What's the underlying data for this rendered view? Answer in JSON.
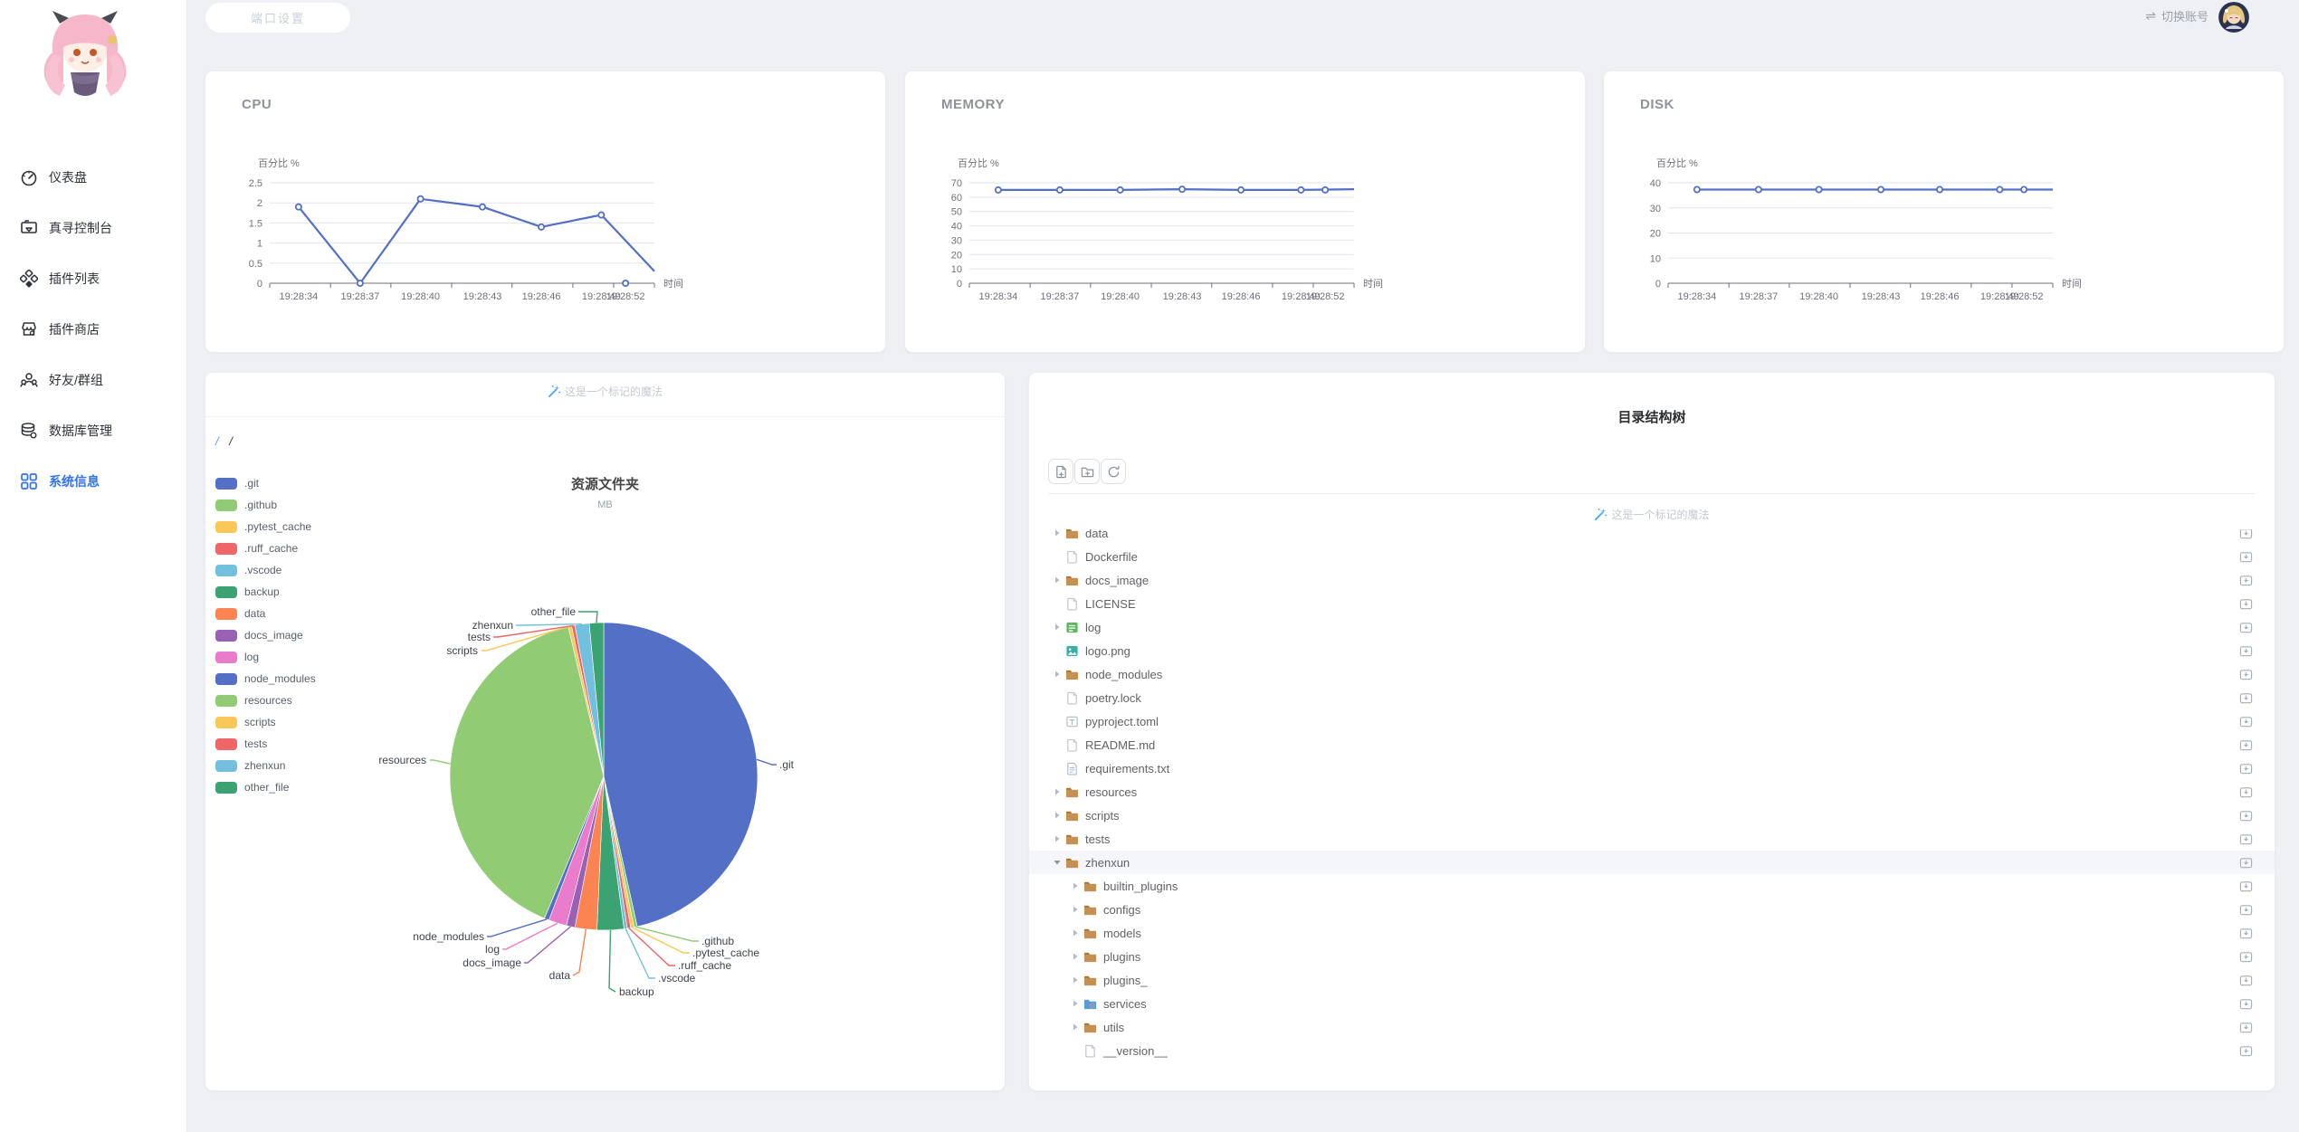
{
  "topbar": {
    "port_settings_label": "端口设置",
    "switch_account_label": "切换账号"
  },
  "sidebar": {
    "items": [
      {
        "label": "仪表盘",
        "icon": "dashboard-icon",
        "active": false
      },
      {
        "label": "真寻控制台",
        "icon": "console-icon",
        "active": false
      },
      {
        "label": "插件列表",
        "icon": "plugins-icon",
        "active": false
      },
      {
        "label": "插件商店",
        "icon": "store-icon",
        "active": false
      },
      {
        "label": "好友/群组",
        "icon": "friends-icon",
        "active": false
      },
      {
        "label": "数据库管理",
        "icon": "database-icon",
        "active": false
      },
      {
        "label": "系统信息",
        "icon": "grid-icon",
        "active": true
      }
    ]
  },
  "chart_data": [
    {
      "type": "line",
      "title": "CPU",
      "ylabel": "百分比 %",
      "xlabel": "时间",
      "x": [
        "19:28:34",
        "19:28:37",
        "19:28:40",
        "19:28:43",
        "19:28:46",
        "19:28:49",
        "19:28:52"
      ],
      "values": [
        1.9,
        0,
        2.1,
        1.9,
        1.4,
        1.7,
        0
      ],
      "edge_value": 0.3,
      "y_ticks": [
        0,
        0.5,
        1,
        1.5,
        2,
        2.5
      ],
      "ylim": [
        0,
        2.5
      ],
      "line_color": "#5470c6",
      "grid": true,
      "legend_position": "none"
    },
    {
      "type": "line",
      "title": "MEMORY",
      "ylabel": "百分比 %",
      "xlabel": "时间",
      "x": [
        "19:28:34",
        "19:28:37",
        "19:28:40",
        "19:28:43",
        "19:28:46",
        "19:28:49",
        "19:28:52"
      ],
      "values": [
        65,
        65,
        65,
        65.5,
        65,
        65,
        65
      ],
      "edge_value": 65.5,
      "y_ticks": [
        0,
        10,
        20,
        30,
        40,
        50,
        60,
        70
      ],
      "ylim": [
        0,
        70
      ],
      "line_color": "#5470c6",
      "grid": true,
      "legend_position": "none"
    },
    {
      "type": "line",
      "title": "DISK",
      "ylabel": "百分比 %",
      "xlabel": "时间",
      "x": [
        "19:28:34",
        "19:28:37",
        "19:28:40",
        "19:28:43",
        "19:28:46",
        "19:28:49",
        "19:28:52"
      ],
      "values": [
        37.3,
        37.3,
        37.3,
        37.3,
        37.3,
        37.3,
        37.3
      ],
      "edge_value": 37.3,
      "y_ticks": [
        0,
        10,
        20,
        30,
        40
      ],
      "ylim": [
        0,
        40
      ],
      "line_color": "#5470c6",
      "grid": true,
      "legend_position": "none"
    },
    {
      "type": "pie",
      "title": "资源文件夹",
      "subtitle": "MB",
      "legend_position": "left",
      "slices": [
        {
          "name": ".git",
          "color": "#5470c6",
          "share_percent_estimate": 46.5
        },
        {
          "name": ".github",
          "color": "#91cc75",
          "share_percent_estimate": 0.35
        },
        {
          "name": ".pytest_cache",
          "color": "#fac858",
          "share_percent_estimate": 0.35
        },
        {
          "name": ".ruff_cache",
          "color": "#ee6666",
          "share_percent_estimate": 0.35
        },
        {
          "name": ".vscode",
          "color": "#73c0de",
          "share_percent_estimate": 0.35
        },
        {
          "name": "backup",
          "color": "#3ba272",
          "share_percent_estimate": 2.8
        },
        {
          "name": "data",
          "color": "#fc8452",
          "share_percent_estimate": 2.3
        },
        {
          "name": "docs_image",
          "color": "#9a60b4",
          "share_percent_estimate": 0.9
        },
        {
          "name": "log",
          "color": "#ea7ccc",
          "share_percent_estimate": 1.9
        },
        {
          "name": "node_modules",
          "color": "#5470c6",
          "share_percent_estimate": 0.5
        },
        {
          "name": "resources",
          "color": "#91cc75",
          "share_percent_estimate": 40.0
        },
        {
          "name": "scripts",
          "color": "#fac858",
          "share_percent_estimate": 0.35
        },
        {
          "name": "tests",
          "color": "#ee6666",
          "share_percent_estimate": 0.35
        },
        {
          "name": "zhenxun",
          "color": "#73c0de",
          "share_percent_estimate": 1.5
        },
        {
          "name": "other_file",
          "color": "#3ba272",
          "share_percent_estimate": 1.5
        }
      ]
    }
  ],
  "pie_card": {
    "watermark": "这是一个标记的魔法",
    "breadcrumb": [
      "/",
      "/"
    ]
  },
  "tree_panel": {
    "title": "目录结构树",
    "watermark": "这是一个标记的魔法",
    "toolbar": [
      {
        "icon": "new-file-icon"
      },
      {
        "icon": "new-folder-icon"
      },
      {
        "icon": "refresh-icon"
      }
    ],
    "rows": [
      {
        "name": "data",
        "icon": "folder",
        "depth": 0,
        "caret": "collapsed"
      },
      {
        "name": "Dockerfile",
        "icon": "file",
        "depth": 0,
        "caret": "none"
      },
      {
        "name": "docs_image",
        "icon": "folder",
        "depth": 0,
        "caret": "collapsed"
      },
      {
        "name": "LICENSE",
        "icon": "file",
        "depth": 0,
        "caret": "none"
      },
      {
        "name": "log",
        "icon": "folder-log",
        "depth": 0,
        "caret": "collapsed"
      },
      {
        "name": "logo.png",
        "icon": "image",
        "depth": 0,
        "caret": "none"
      },
      {
        "name": "node_modules",
        "icon": "folder",
        "depth": 0,
        "caret": "collapsed"
      },
      {
        "name": "poetry.lock",
        "icon": "file",
        "depth": 0,
        "caret": "none"
      },
      {
        "name": "pyproject.toml",
        "icon": "toml",
        "depth": 0,
        "caret": "none"
      },
      {
        "name": "README.md",
        "icon": "file",
        "depth": 0,
        "caret": "none"
      },
      {
        "name": "requirements.txt",
        "icon": "txt",
        "depth": 0,
        "caret": "none"
      },
      {
        "name": "resources",
        "icon": "folder",
        "depth": 0,
        "caret": "collapsed"
      },
      {
        "name": "scripts",
        "icon": "folder",
        "depth": 0,
        "caret": "collapsed"
      },
      {
        "name": "tests",
        "icon": "folder",
        "depth": 0,
        "caret": "collapsed"
      },
      {
        "name": "zhenxun",
        "icon": "folder",
        "depth": 0,
        "caret": "expanded",
        "selected": true
      },
      {
        "name": "builtin_plugins",
        "icon": "folder",
        "depth": 1,
        "caret": "collapsed"
      },
      {
        "name": "configs",
        "icon": "folder",
        "depth": 1,
        "caret": "collapsed"
      },
      {
        "name": "models",
        "icon": "folder",
        "depth": 1,
        "caret": "collapsed"
      },
      {
        "name": "plugins",
        "icon": "folder",
        "depth": 1,
        "caret": "collapsed"
      },
      {
        "name": "plugins_",
        "icon": "folder",
        "depth": 1,
        "caret": "collapsed"
      },
      {
        "name": "services",
        "icon": "folder-services",
        "depth": 1,
        "caret": "collapsed"
      },
      {
        "name": "utils",
        "icon": "folder",
        "depth": 1,
        "caret": "collapsed"
      },
      {
        "name": "__version__",
        "icon": "file",
        "depth": 1,
        "caret": "none"
      }
    ]
  }
}
